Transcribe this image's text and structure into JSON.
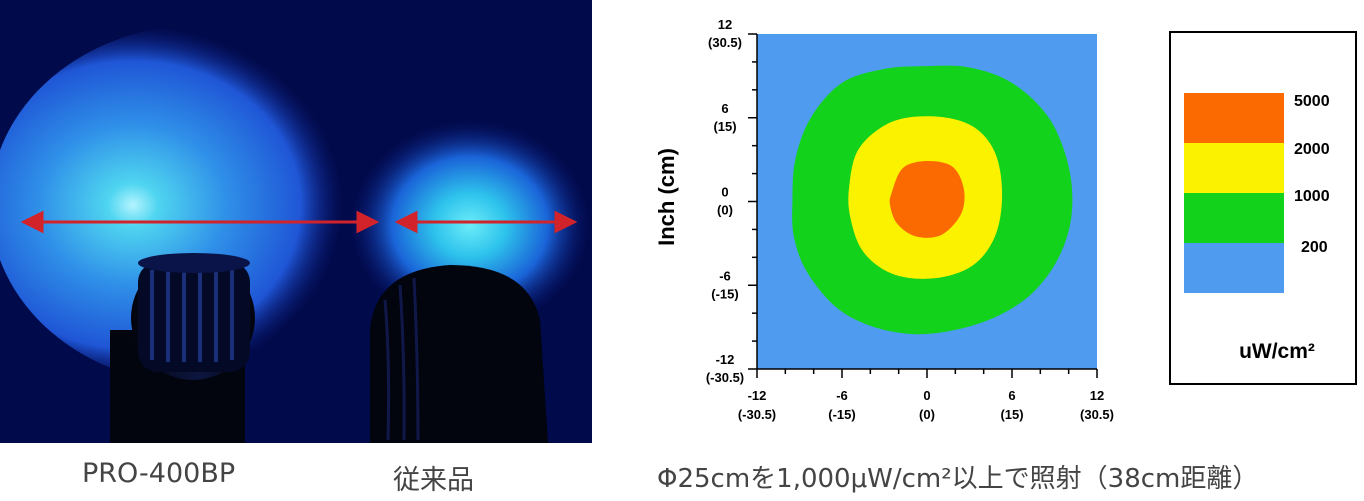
{
  "photo": {
    "left_product": "PRO-400BP",
    "right_product": "従来品"
  },
  "caption": "Φ25cmを1,000μW/cm²以上で照射（38cm距離）",
  "colors": {
    "photo_background": "#010a4a",
    "beam_core": "#49d6ef",
    "beam_outer": "#1f5ce0",
    "arrow": "#d2232a",
    "plot_background": "#4f9bf0",
    "level_200_1000": "#12d21c",
    "level_1000_2000": "#fbf200",
    "level_2000_5000": "#fb6a00"
  },
  "chart_data": {
    "type": "heatmap",
    "ylabel": "Inch (cm)",
    "xlim": [
      -12,
      12
    ],
    "ylim": [
      -12,
      12
    ],
    "x_ticks": [
      {
        "value": -12,
        "label": "-12",
        "sub": "(-30.5)"
      },
      {
        "value": -6,
        "label": "-6",
        "sub": "(-15)"
      },
      {
        "value": 0,
        "label": "0",
        "sub": "(0)"
      },
      {
        "value": 6,
        "label": "6",
        "sub": "(15)"
      },
      {
        "value": 12,
        "label": "12",
        "sub": "(30.5)"
      }
    ],
    "y_ticks": [
      {
        "value": 12,
        "label": "12",
        "sub": "(30.5)"
      },
      {
        "value": 6,
        "label": "6",
        "sub": "(15)"
      },
      {
        "value": 0,
        "label": "0",
        "sub": "(0)"
      },
      {
        "value": -6,
        "label": "-6",
        "sub": "(-15)"
      },
      {
        "value": -12,
        "label": "-12",
        "sub": "(-30.5)"
      }
    ],
    "contours": [
      {
        "level": 200,
        "points": [
          [
            -9.5,
            0.0
          ],
          [
            -9.3,
            3.0
          ],
          [
            -8.2,
            6.0
          ],
          [
            -6.0,
            8.5
          ],
          [
            -3.0,
            9.5
          ],
          [
            0.0,
            9.7
          ],
          [
            3.0,
            9.6
          ],
          [
            6.0,
            8.5
          ],
          [
            8.6,
            6.0
          ],
          [
            10.0,
            2.5
          ],
          [
            10.2,
            -1.0
          ],
          [
            9.3,
            -4.0
          ],
          [
            7.5,
            -6.5
          ],
          [
            5.0,
            -8.2
          ],
          [
            2.0,
            -9.2
          ],
          [
            -1.0,
            -9.5
          ],
          [
            -4.0,
            -8.9
          ],
          [
            -6.5,
            -7.5
          ],
          [
            -8.5,
            -5.0
          ],
          [
            -9.4,
            -2.5
          ]
        ]
      },
      {
        "level": 1000,
        "points": [
          [
            -5.5,
            1.0
          ],
          [
            -4.8,
            3.8
          ],
          [
            -2.5,
            5.7
          ],
          [
            0.5,
            6.1
          ],
          [
            3.2,
            5.4
          ],
          [
            4.8,
            3.5
          ],
          [
            5.3,
            0.5
          ],
          [
            4.8,
            -2.5
          ],
          [
            3.2,
            -4.6
          ],
          [
            0.5,
            -5.5
          ],
          [
            -2.4,
            -5.2
          ],
          [
            -4.5,
            -3.6
          ],
          [
            -5.4,
            -1.2
          ]
        ]
      },
      {
        "level": 2000,
        "points": [
          [
            -2.5,
            0.6
          ],
          [
            -1.7,
            2.4
          ],
          [
            0.0,
            2.9
          ],
          [
            1.8,
            2.5
          ],
          [
            2.6,
            0.9
          ],
          [
            2.4,
            -0.9
          ],
          [
            1.0,
            -2.4
          ],
          [
            -0.8,
            -2.5
          ],
          [
            -2.1,
            -1.6
          ],
          [
            -2.6,
            -0.3
          ]
        ]
      }
    ],
    "legend": {
      "levels": [
        "5000",
        "2000",
        "1000",
        "200"
      ],
      "unit": "uW/cm²"
    }
  }
}
